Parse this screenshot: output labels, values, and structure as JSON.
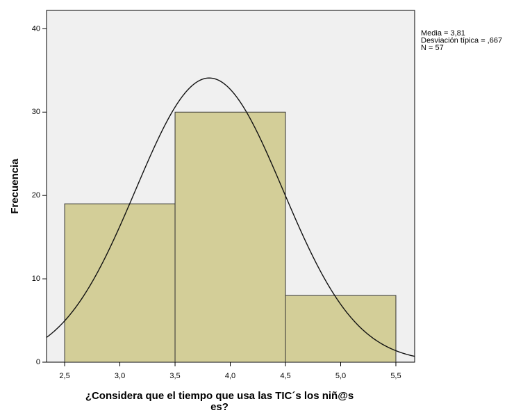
{
  "chart_data": {
    "type": "histogram",
    "ylabel": "Frecuencia",
    "xlabel": "¿Considera que el tiempo que usa las TIC´s los niñ@s es?",
    "bins": [
      2.5,
      3.5,
      4.5,
      5.5
    ],
    "values": [
      19,
      30,
      8
    ],
    "color": "#d3ce98",
    "xlim": [
      2.336,
      5.67
    ],
    "ylim": [
      0,
      42.2
    ],
    "xticks": [
      {
        "value": 2.5,
        "label": "2,5"
      },
      {
        "value": 3.0,
        "label": "3,0"
      },
      {
        "value": 3.5,
        "label": "3,5"
      },
      {
        "value": 4.0,
        "label": "4,0"
      },
      {
        "value": 4.5,
        "label": "4,5"
      },
      {
        "value": 5.0,
        "label": "5,0"
      },
      {
        "value": 5.5,
        "label": "5,5"
      }
    ],
    "yticks": [
      0,
      10,
      20,
      30,
      40
    ],
    "annotations": [
      {
        "value": 3.81,
        "label": "Media = 3,81"
      },
      {
        "value": 0.667,
        "label": "Desviación típica = ,667"
      },
      {
        "value": 57,
        "label": "N = 57"
      }
    ]
  }
}
